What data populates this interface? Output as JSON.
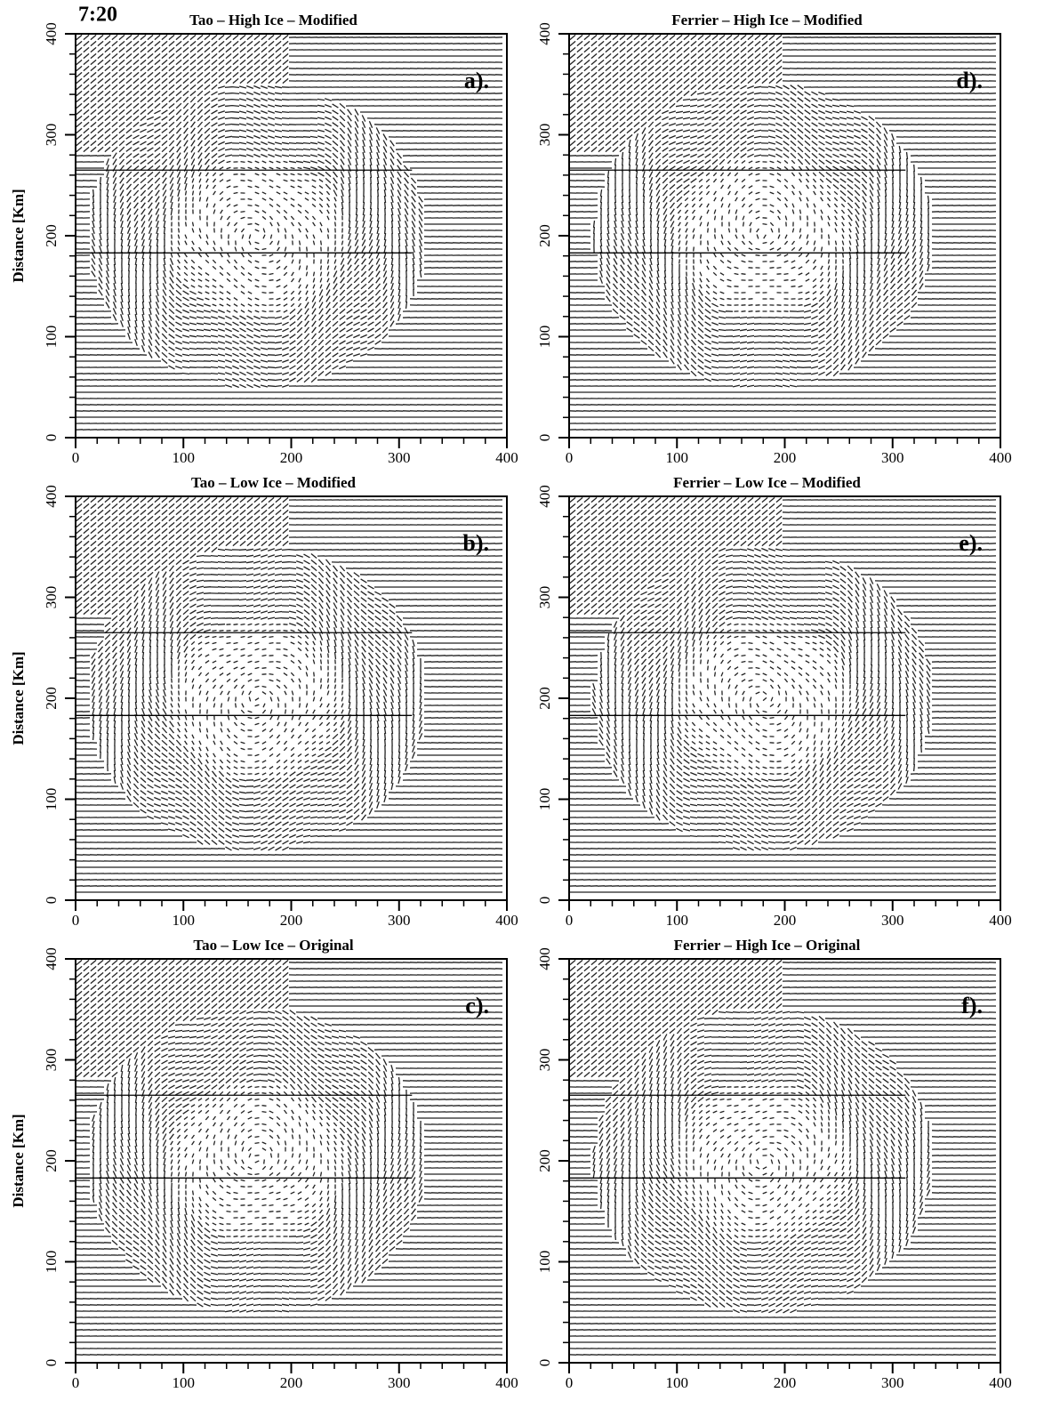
{
  "time_label": "7:20",
  "panels": [
    {
      "title": "Tao – High Ice – Modified",
      "tag": "a).",
      "ylabel": "Distance [Km]",
      "xlim": [
        0,
        400
      ],
      "ylim": [
        0,
        400
      ],
      "xticks": [
        0,
        100,
        200,
        300,
        400
      ],
      "yticks": [
        0,
        100,
        200,
        300,
        400
      ]
    },
    {
      "title": "Ferrier – High Ice – Modified",
      "tag": "d).",
      "xlim": [
        0,
        400
      ],
      "ylim": [
        0,
        400
      ],
      "xticks": [
        0,
        100,
        200,
        300,
        400
      ],
      "yticks": [
        0,
        100,
        200,
        300,
        400
      ]
    },
    {
      "title": "Tao – Low Ice – Modified",
      "tag": "b).",
      "ylabel": "Distance [Km]",
      "xlim": [
        0,
        400
      ],
      "ylim": [
        0,
        400
      ],
      "xticks": [
        0,
        100,
        200,
        300,
        400
      ],
      "yticks": [
        0,
        100,
        200,
        300,
        400
      ]
    },
    {
      "title": "Ferrier – Low Ice – Modified",
      "tag": "e).",
      "xlim": [
        0,
        400
      ],
      "ylim": [
        0,
        400
      ],
      "xticks": [
        0,
        100,
        200,
        300,
        400
      ],
      "yticks": [
        0,
        100,
        200,
        300,
        400
      ]
    },
    {
      "title": "Tao – Low Ice – Original",
      "tag": "c).",
      "ylabel": "Distance [Km]",
      "xlim": [
        0,
        400
      ],
      "ylim": [
        0,
        400
      ],
      "xticks": [
        0,
        100,
        200,
        300,
        400
      ],
      "yticks": [
        0,
        100,
        200,
        300,
        400
      ]
    },
    {
      "title": "Ferrier – High Ice – Original",
      "tag": "f).",
      "xlim": [
        0,
        400
      ],
      "ylim": [
        0,
        400
      ],
      "xticks": [
        0,
        100,
        200,
        300,
        400
      ],
      "yticks": [
        0,
        100,
        200,
        300,
        400
      ]
    }
  ]
}
